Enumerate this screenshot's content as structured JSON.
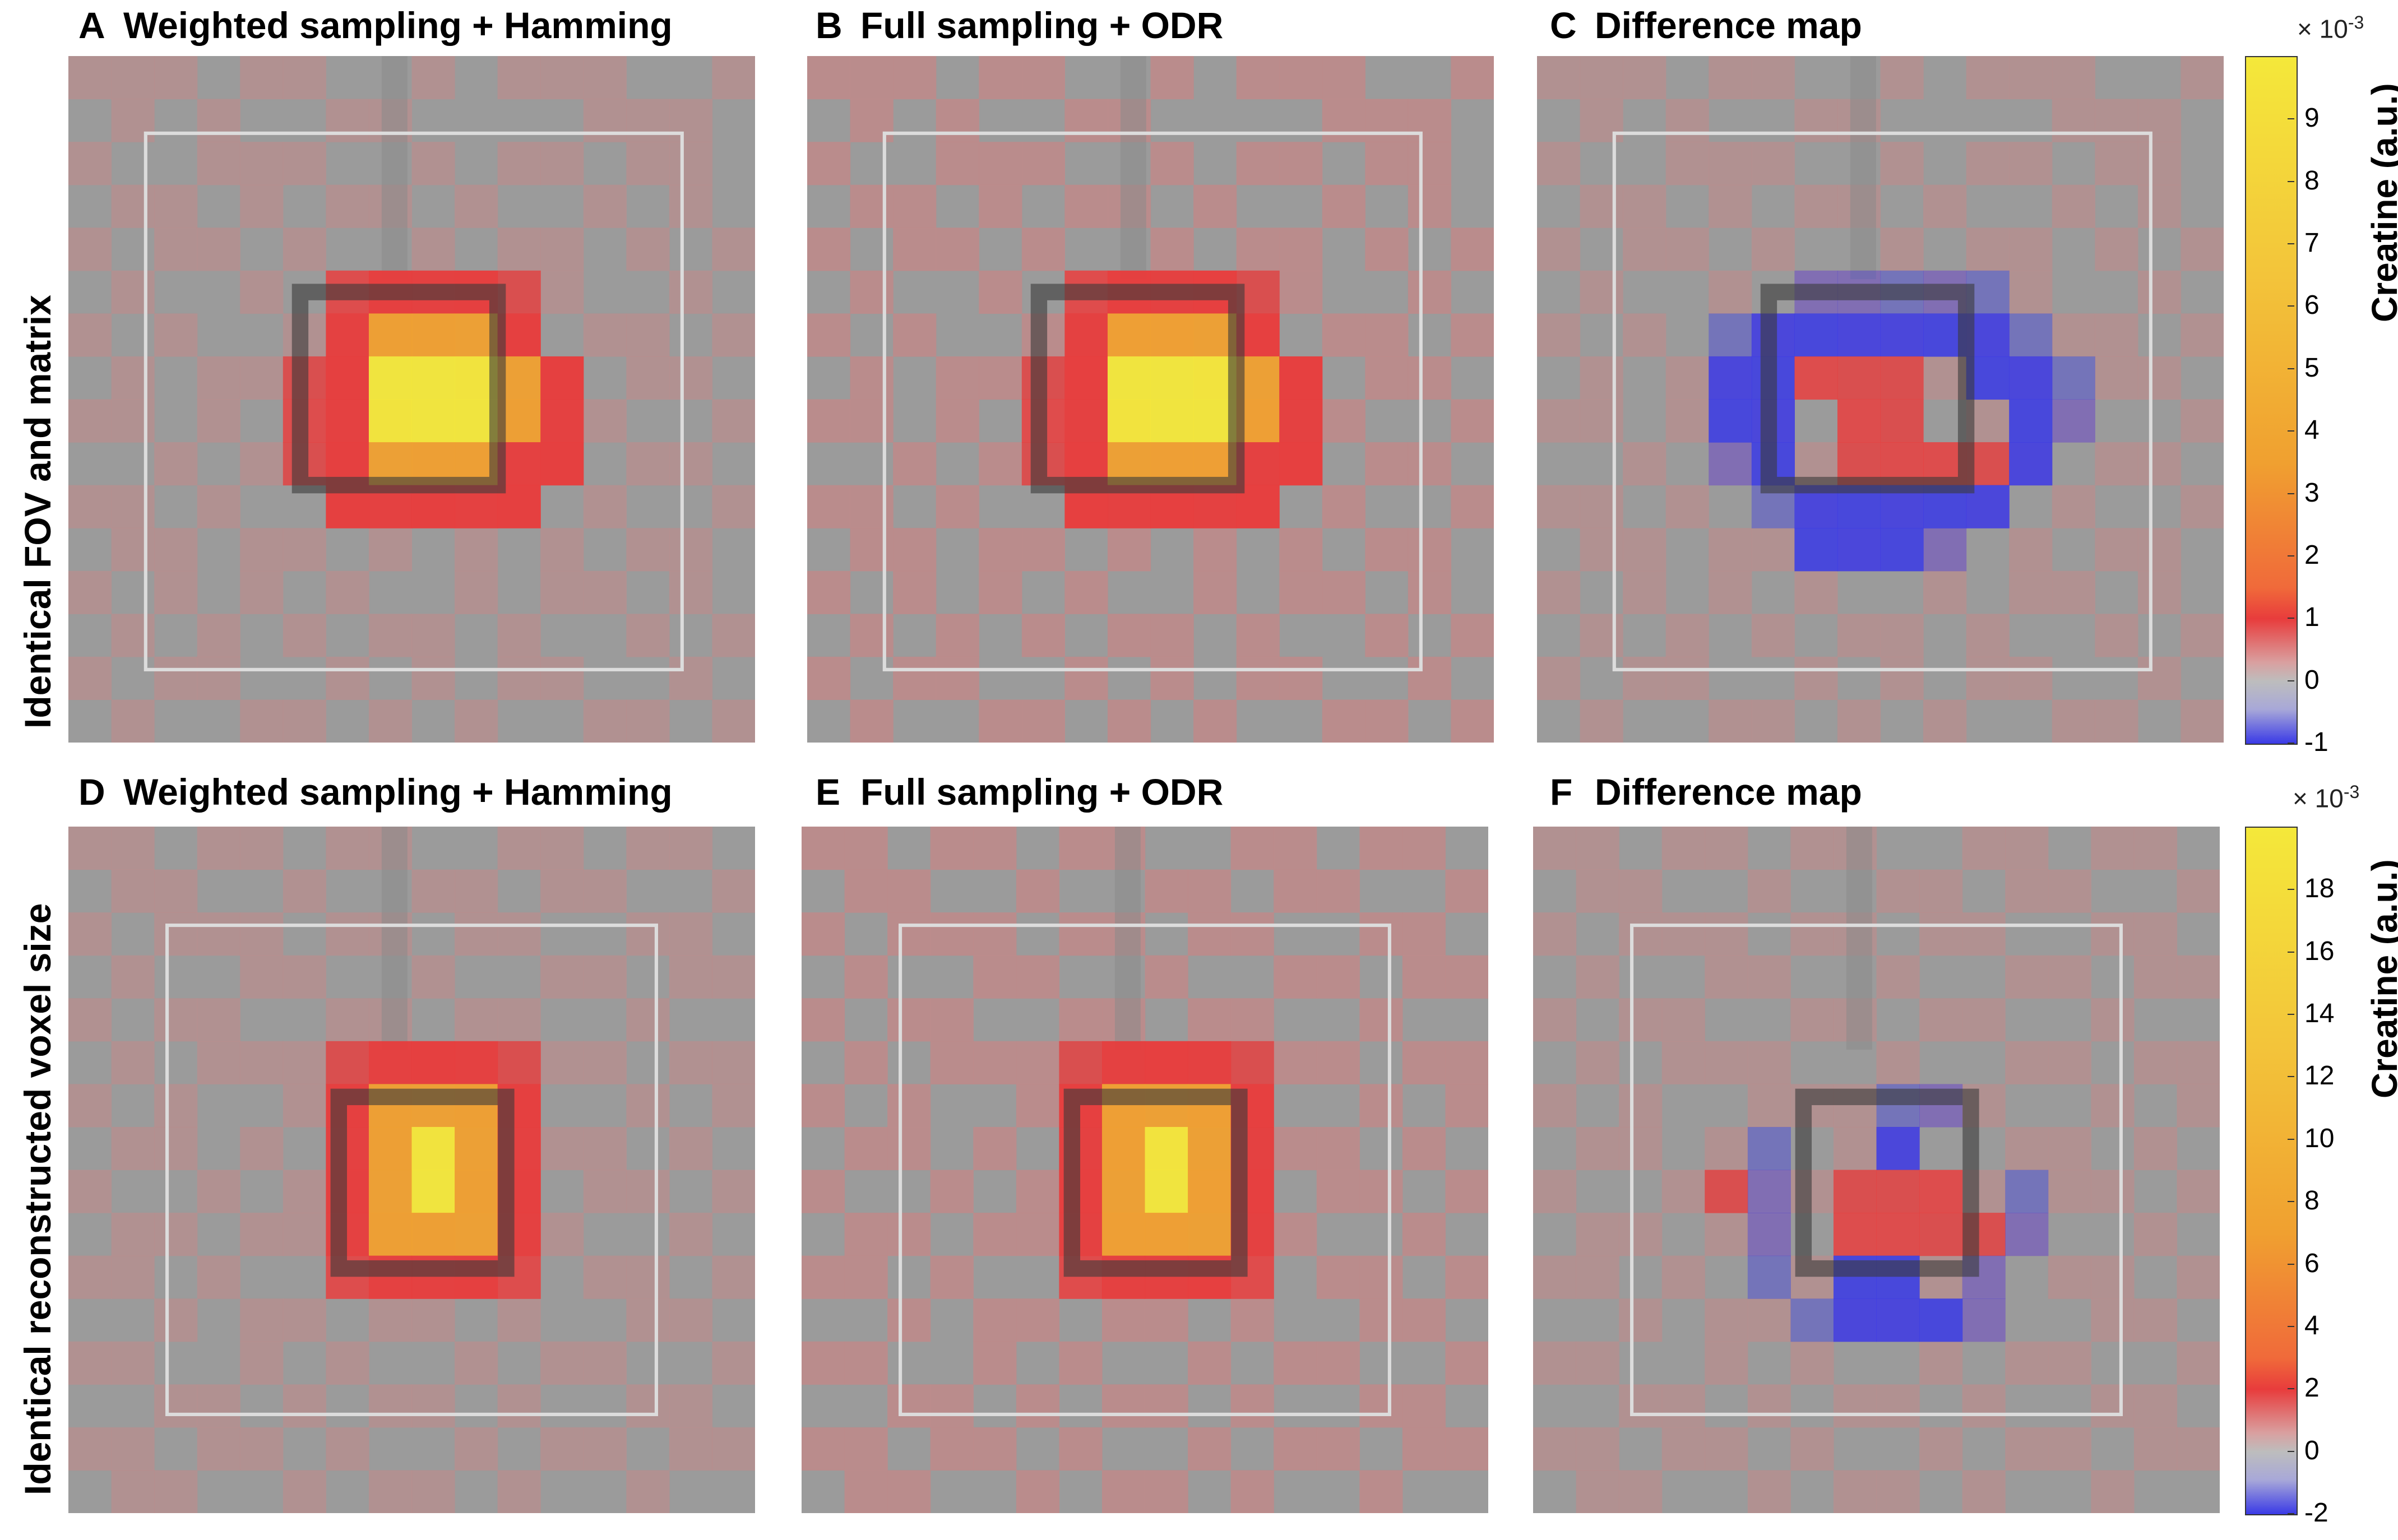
{
  "row_labels": {
    "top": "Identical FOV and matrix",
    "bottom": "Identical reconstructed voxel size"
  },
  "panels": {
    "A": {
      "letter": "A",
      "title": "Weighted sampling + Hamming"
    },
    "B": {
      "letter": "B",
      "title": "Full sampling + ODR"
    },
    "C": {
      "letter": "C",
      "title": "Difference map"
    },
    "D": {
      "letter": "D",
      "title": "Weighted sampling + Hamming"
    },
    "E": {
      "letter": "E",
      "title": "Full sampling + ODR"
    },
    "F": {
      "letter": "F",
      "title": "Difference map"
    }
  },
  "colorbars": {
    "top": {
      "title": "Creatine (a.u.)",
      "exponent_base": "× 10",
      "exponent_power": "-3",
      "ticks": [
        "9",
        "8",
        "7",
        "6",
        "5",
        "4",
        "3",
        "2",
        "1",
        "0",
        "-1"
      ],
      "tick_values": [
        9,
        8,
        7,
        6,
        5,
        4,
        3,
        2,
        1,
        0,
        -1
      ],
      "range": [
        -1,
        10
      ]
    },
    "bottom": {
      "title": "Creatine (a.u.)",
      "exponent_base": "× 10",
      "exponent_power": "-3",
      "ticks": [
        "18",
        "16",
        "14",
        "12",
        "10",
        "8",
        "6",
        "4",
        "2",
        "0",
        "-2"
      ],
      "tick_values": [
        18,
        16,
        14,
        12,
        10,
        8,
        6,
        4,
        2,
        0,
        -2
      ],
      "range": [
        -2,
        20
      ]
    }
  },
  "colors": {
    "background_gray": "#9b9b9b",
    "faint_red": "#c08a8a",
    "red": "#e83c3c",
    "orange": "#f0a030",
    "yellow": "#f4e83a",
    "blue": "#3a3ae6",
    "roi_outline": "#dcdcdc"
  },
  "grid": {
    "top": {
      "bg": [
        "1110110010111001",
        "0101001100001110",
        "1001110010110110",
        "0110101101001010",
        "1011010010110101",
        "0100101101010010",
        "1010010110101101",
        "0101101001010110",
        "1101010100101001",
        "0010101011010110",
        "1101001010101001",
        "0110110101010110",
        "1010101001011010",
        "0101010110100101",
        "1011001010110010",
        "0100110101001101"
      ],
      "pos": [
        "................",
        "................",
        "................",
        "................",
        "................",
        "......abbba.....",
        "......bcccb.....",
        ".....abdddcb....",
        ".....abdddcb....",
        ".....abcccbb....",
        "......bbbbb.....",
        "................",
        "................",
        "................",
        "................",
        "................"
      ],
      "diff": [
        "................",
        "................",
        "................",
        "................",
        "................",
        "......nnnnn.....",
        "....nNNNNNNn....",
        "....NNrrr.NNn...",
        "....NN.rr..Nn...",
        "....nN.rrrrN....",
        ".....nNNNNN.....",
        "......NNNn......",
        "................",
        "................",
        "................",
        "................"
      ]
    },
    "bottom": {
      "bg": [
        "1101101100110110",
        "0110010011011001",
        "1011101101100110",
        "0100110010011011",
        "1011001101100100",
        "0101110010011011",
        "1010011101100101",
        "0110100110011010",
        "1001011001101101",
        "0110110110010010",
        "1101001001101101",
        "0010110110100110",
        "1100101001011001",
        "0011010110100110",
        "1101101001011011",
        "0110010110100100"
      ],
      "pos": [
        "................",
        "................",
        "................",
        "................",
        "................",
        "......abbba.....",
        "......bcccb.....",
        "......bcdcb.....",
        "......bcdcb.....",
        "......bcccb.....",
        "......abbba.....",
        "................",
        "................",
        "................",
        "................",
        "................"
      ],
      "diff": [
        "................",
        "................",
        "................",
        "................",
        "................",
        "................",
        "........nn......",
        ".....n..N.......",
        "....rn.rrr.n....",
        ".....n.rrrrn....",
        ".....n.NN.n.....",
        "......nNNNn.....",
        "................",
        "................",
        "................",
        "................"
      ]
    }
  }
}
